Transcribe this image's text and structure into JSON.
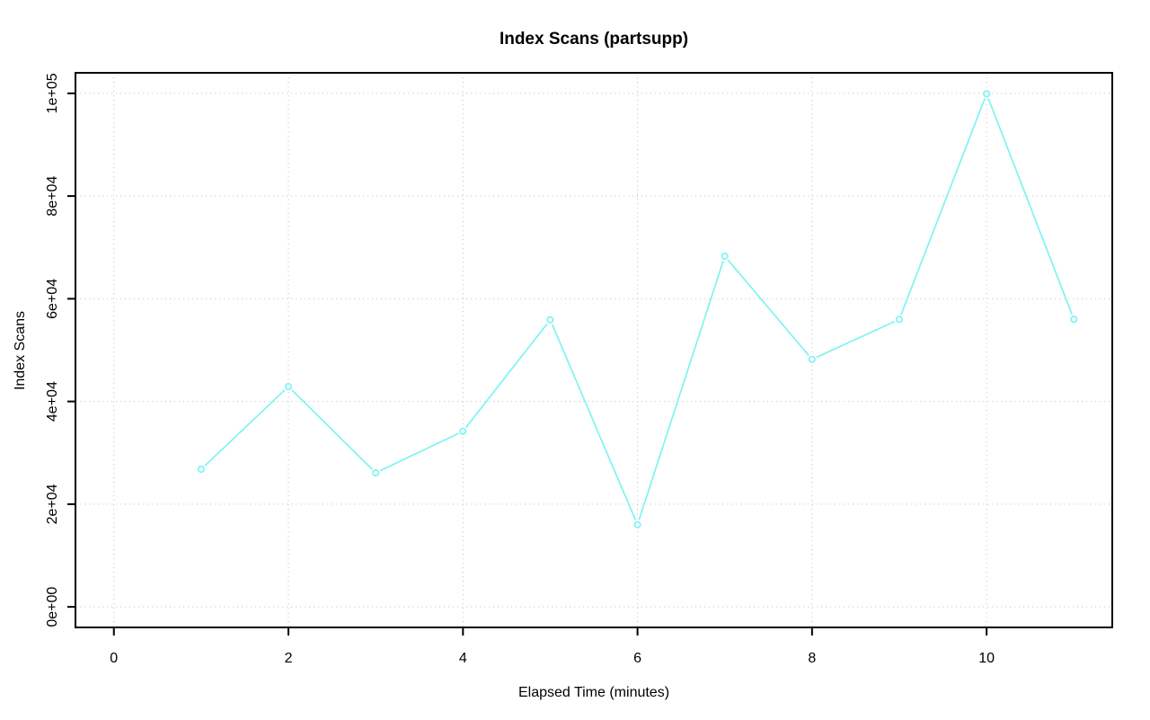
{
  "chart_data": {
    "type": "line",
    "title": "Index Scans (partsupp)",
    "xlabel": "Elapsed Time (minutes)",
    "ylabel": "Index Scans",
    "series": [
      {
        "name": "Index Scans",
        "x": [
          1,
          2,
          3,
          4,
          5,
          6,
          7,
          8,
          9,
          10,
          11
        ],
        "y": [
          26800,
          42900,
          26100,
          34200,
          55900,
          16000,
          68300,
          48200,
          56000,
          99900,
          56000
        ]
      }
    ],
    "xlim": [
      0,
      11
    ],
    "ylim": [
      0,
      100000
    ],
    "x_ticks": {
      "values": [
        0,
        2,
        4,
        6,
        8,
        10
      ],
      "labels": [
        "0",
        "2",
        "4",
        "6",
        "8",
        "10"
      ]
    },
    "y_ticks": {
      "values": [
        0,
        20000,
        40000,
        60000,
        80000,
        100000
      ],
      "labels": [
        "0e+00",
        "2e+04",
        "4e+04",
        "6e+04",
        "8e+04",
        "1e+05"
      ]
    },
    "grid": true,
    "grid_style": "dotted",
    "legend": "none",
    "marker": "open-circle",
    "colors": {
      "line": "#7DF4F2",
      "marker": "#7DF4F2",
      "grid": "#C9C9C9",
      "axis": "#000000",
      "background": "#FFFFFF"
    }
  }
}
